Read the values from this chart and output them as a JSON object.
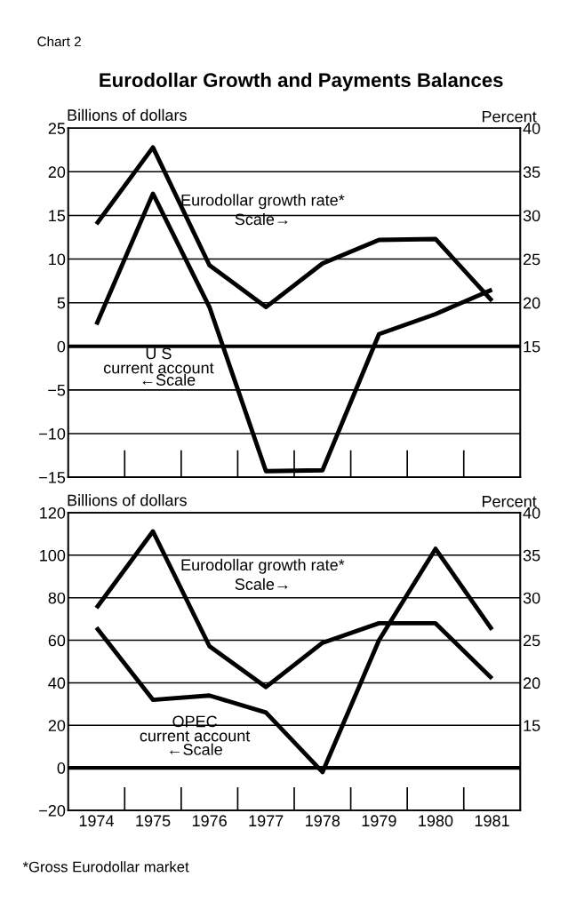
{
  "chart_data": [
    {
      "type": "line",
      "title": "Eurodollar Growth and Payments Balances",
      "ylabel": "Billions of dollars",
      "y2label": "Percent",
      "categories": [
        "1974",
        "1975",
        "1976",
        "1977",
        "1978",
        "1979",
        "1980",
        "1981"
      ],
      "series": [
        {
          "name": "Eurodollar growth rate*",
          "color": "#000000",
          "axis": "y2",
          "values": [
            29,
            37.8,
            24.3,
            19.5,
            24.5,
            27.2,
            27.3,
            20.2
          ]
        },
        {
          "name": "U S\ncurrent account",
          "color": "#000000",
          "values": [
            2.5,
            17.5,
            4.5,
            -14.3,
            -14.2,
            1.4,
            3.7,
            6.5
          ]
        }
      ],
      "ylim": [
        -15,
        25
      ],
      "yticks": [
        {
          "value": -15,
          "label": "−15"
        },
        {
          "value": -10,
          "label": "−10"
        },
        {
          "value": -5,
          "label": "−5"
        },
        0,
        5,
        10,
        15,
        20,
        25
      ],
      "y2lim": [
        0,
        40
      ],
      "y2ticks": [
        15,
        20,
        25,
        30,
        35,
        40
      ],
      "grid": "y",
      "ref_lines": [
        {
          "axis": "y",
          "value": 0
        }
      ],
      "tick_labels": "y",
      "marker": "none",
      "line_style": "solid",
      "annotations": [
        "Chart 2",
        "Scale→",
        "←Scale"
      ]
    },
    {
      "type": "line",
      "ylabel": "Billions of dollars",
      "y2label": "Percent",
      "categories": [
        "1974",
        "1975",
        "1976",
        "1977",
        "1978",
        "1979",
        "1980",
        "1981"
      ],
      "series": [
        {
          "name": "Eurodollar growth rate*",
          "color": "#000000",
          "axis": "y2",
          "values": [
            28.8,
            37.8,
            24.3,
            19.5,
            24.7,
            27,
            27,
            20.5
          ]
        },
        {
          "name": "OPEC\ncurrent account",
          "color": "#000000",
          "values": [
            66,
            32,
            34,
            26,
            -2,
            60,
            103,
            65
          ]
        }
      ],
      "ylim": [
        -20,
        120
      ],
      "yticks": [
        {
          "value": -20,
          "label": "−20"
        },
        0,
        20,
        40,
        60,
        80,
        100,
        120
      ],
      "y2lim": [
        5,
        40
      ],
      "y2ticks": [
        15,
        20,
        25,
        30,
        35,
        40
      ],
      "grid": "y",
      "ref_lines": [
        {
          "axis": "y",
          "value": 0
        }
      ],
      "marker": "none",
      "line_style": "solid",
      "annotations": [
        "Scale→",
        "←Scale",
        "*Gross Eurodollar market"
      ]
    }
  ]
}
